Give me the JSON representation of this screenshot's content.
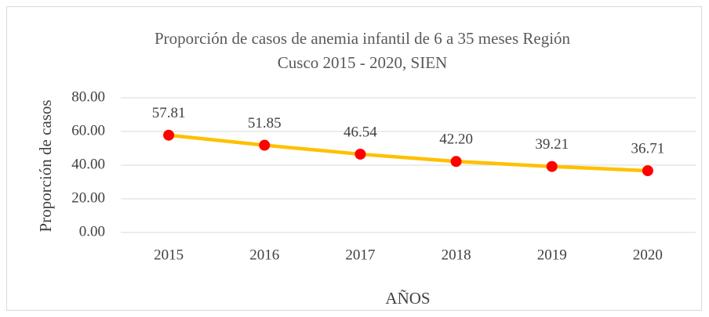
{
  "chart_data": {
    "type": "line",
    "title": "Proporción de casos de anemia infantil de 6 a 35 meses Región Cusco 2015 - 2020, SIEN",
    "x_label": "AÑOS",
    "y_label": "Proporción de casos",
    "categories": [
      "2015",
      "2016",
      "2017",
      "2018",
      "2019",
      "2020"
    ],
    "values": [
      57.81,
      51.85,
      46.54,
      42.2,
      39.21,
      36.71
    ],
    "value_labels": [
      "57.81",
      "51.85",
      "46.54",
      "42.20",
      "39.21",
      "36.71"
    ],
    "color": "#FFC000",
    "marker_color": "#FF0000",
    "ylim": [
      0,
      80
    ],
    "yticks": [
      {
        "value": 0,
        "label": "0.00"
      },
      {
        "value": 20,
        "label": "20.00"
      },
      {
        "value": 40,
        "label": "40.00"
      },
      {
        "value": 60,
        "label": "60.00"
      },
      {
        "value": 80,
        "label": "80.00"
      }
    ],
    "grid": true
  }
}
